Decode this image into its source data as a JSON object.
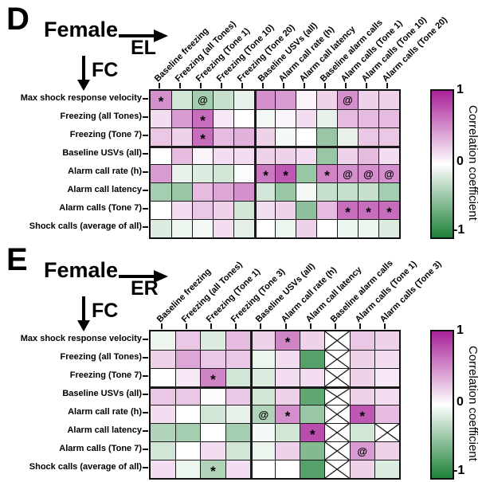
{
  "colorbar": {
    "title": "Correlation coefficient",
    "tick_top": "1",
    "tick_mid": "0",
    "tick_bottom": "-1"
  },
  "colors": {
    "positive_end": "#a82098",
    "negative_end": "#1d8138",
    "grid_line": "#1a1a1a",
    "crossed_cell_bg": "#ffffff"
  },
  "chart_data": [
    {
      "type": "heatmap",
      "panel": "D",
      "title": "Female",
      "col_group_label": "EL",
      "row_group_label": "FC",
      "colorscale": {
        "min": -1,
        "max": 1
      },
      "col_divider_after": 5,
      "row_divider_after": 3,
      "columns": [
        "Baseline freezing",
        "Freezing (all Tones)",
        "Freezing (Tone 1)",
        "Freezing (Tone 10)",
        "Freezing (Tone 20)",
        "Baseline USVs (all)",
        "Alarm call rate (h)",
        "Alarm call latency",
        "Baseline alarm calls",
        "Alarm calls (Tone 1)",
        "Alarm calls (Tone 10)",
        "Alarm calls (Tone 20)"
      ],
      "rows": [
        "Max shock response velocity",
        "Freezing (all Tones)",
        "Freezing (Tone 7)",
        "Baseline USVs (all)",
        "Alarm call rate (h)",
        "Alarm call latency",
        "Alarm calls (Tone 7)",
        "Shock calls (average of all)"
      ],
      "values": [
        [
          0.5,
          -0.2,
          -0.4,
          -0.25,
          -0.1,
          0.5,
          0.45,
          0.05,
          0.2,
          0.5,
          0.2,
          0.2
        ],
        [
          0.15,
          0.45,
          0.65,
          0.1,
          0.0,
          -0.05,
          0.05,
          0.15,
          -0.1,
          0.3,
          0.3,
          0.3
        ],
        [
          0.25,
          0.2,
          0.65,
          0.3,
          0.35,
          0.2,
          -0.05,
          0.0,
          -0.45,
          -0.1,
          0.25,
          0.25
        ],
        [
          0.0,
          0.3,
          0.05,
          0.15,
          0.15,
          0.2,
          0.2,
          0.15,
          -0.45,
          0.2,
          0.3,
          0.15
        ],
        [
          0.45,
          -0.1,
          -0.15,
          -0.2,
          -0.02,
          0.6,
          0.75,
          -0.45,
          0.55,
          0.5,
          0.5,
          0.5
        ],
        [
          -0.4,
          -0.45,
          0.3,
          0.4,
          0.5,
          -0.2,
          -0.45,
          -0.05,
          -0.25,
          -0.25,
          -0.25,
          -0.4
        ],
        [
          0.0,
          0.15,
          0.25,
          0.2,
          -0.2,
          0.15,
          0.2,
          -0.5,
          0.3,
          0.65,
          0.65,
          0.65
        ],
        [
          -0.15,
          -0.08,
          -0.05,
          0.15,
          -0.12,
          0.0,
          -0.08,
          0.2,
          0.0,
          -0.08,
          -0.08,
          -0.15
        ]
      ],
      "marks": [
        [
          "*",
          "",
          "@",
          "",
          "",
          "",
          "",
          "",
          "",
          "@",
          "",
          ""
        ],
        [
          "",
          "",
          "*",
          "",
          "",
          "",
          "",
          "",
          "",
          "",
          "",
          ""
        ],
        [
          "",
          "",
          "*",
          "",
          "",
          "",
          "",
          "",
          "",
          "",
          "",
          ""
        ],
        [
          "",
          "",
          "",
          "",
          "",
          "",
          "",
          "",
          "",
          "",
          "",
          ""
        ],
        [
          "",
          "",
          "",
          "",
          "",
          "*",
          "*",
          "",
          "*",
          "@",
          "@",
          "@"
        ],
        [
          "",
          "",
          "",
          "",
          "",
          "",
          "",
          "",
          "",
          "",
          "",
          ""
        ],
        [
          "",
          "",
          "",
          "",
          "",
          "",
          "",
          "",
          "",
          "*",
          "*",
          "*"
        ],
        [
          "",
          "",
          "",
          "",
          "",
          "",
          "",
          "",
          "",
          "",
          "",
          ""
        ]
      ]
    },
    {
      "type": "heatmap",
      "panel": "E",
      "title": "Female",
      "col_group_label": "ER",
      "row_group_label": "FC",
      "colorscale": {
        "min": -1,
        "max": 1
      },
      "col_divider_after": 4,
      "row_divider_after": 3,
      "columns": [
        "Baseline freezing",
        "Freezing (all Tones)",
        "Freezing (Tone 1)",
        "Freezing (Tone 3)",
        "Baseline USVs (all)",
        "Alarm call rate (h)",
        "Alarm call latency",
        "Baseline alarm calls",
        "Alarm calls (Tone 1)",
        "Alarm calls (Tone 3)"
      ],
      "rows": [
        "Max shock response velocity",
        "Freezing (all Tones)",
        "Freezing (Tone 7)",
        "Baseline USVs (all)",
        "Alarm call rate (h)",
        "Alarm call latency",
        "Alarm calls (Tone 7)",
        "Shock calls (average of all)"
      ],
      "values": [
        [
          -0.08,
          0.25,
          -0.15,
          0.3,
          0.2,
          0.55,
          0.2,
          null,
          0.25,
          0.2
        ],
        [
          0.2,
          0.4,
          0.25,
          0.25,
          -0.08,
          0.15,
          -0.75,
          null,
          0.2,
          0.15
        ],
        [
          0.0,
          0.1,
          0.55,
          -0.2,
          -0.15,
          0.15,
          0.15,
          null,
          0.2,
          0.1
        ],
        [
          0.25,
          0.25,
          0.02,
          0.25,
          -0.2,
          0.2,
          -0.7,
          null,
          0.2,
          0.15
        ],
        [
          0.15,
          0.0,
          -0.2,
          -0.1,
          -0.35,
          0.5,
          -0.45,
          null,
          0.75,
          0.3
        ],
        [
          -0.35,
          -0.4,
          0.0,
          -0.4,
          -0.05,
          -0.2,
          0.8,
          null,
          -0.2,
          null
        ],
        [
          -0.2,
          0.0,
          0.15,
          -0.2,
          -0.08,
          0.2,
          -0.55,
          null,
          0.45,
          0.2
        ],
        [
          0.15,
          -0.08,
          -0.35,
          0.15,
          0.0,
          0.0,
          -0.75,
          null,
          0.2,
          -0.15
        ]
      ],
      "marks": [
        [
          "",
          "",
          "",
          "",
          "",
          "*",
          "",
          "X",
          "",
          ""
        ],
        [
          "",
          "",
          "",
          "",
          "",
          "",
          "",
          "X",
          "",
          ""
        ],
        [
          "",
          "",
          "*",
          "",
          "",
          "",
          "",
          "X",
          "",
          ""
        ],
        [
          "",
          "",
          "",
          "",
          "",
          "",
          "",
          "X",
          "",
          ""
        ],
        [
          "",
          "",
          "",
          "",
          "@",
          "*",
          "",
          "X",
          "*",
          ""
        ],
        [
          "",
          "",
          "",
          "",
          "",
          "",
          "*",
          "X",
          "",
          "X"
        ],
        [
          "",
          "",
          "",
          "",
          "",
          "",
          "",
          "X",
          "@",
          ""
        ],
        [
          "",
          "",
          "*",
          "",
          "",
          "",
          "",
          "X",
          "",
          ""
        ]
      ]
    }
  ]
}
